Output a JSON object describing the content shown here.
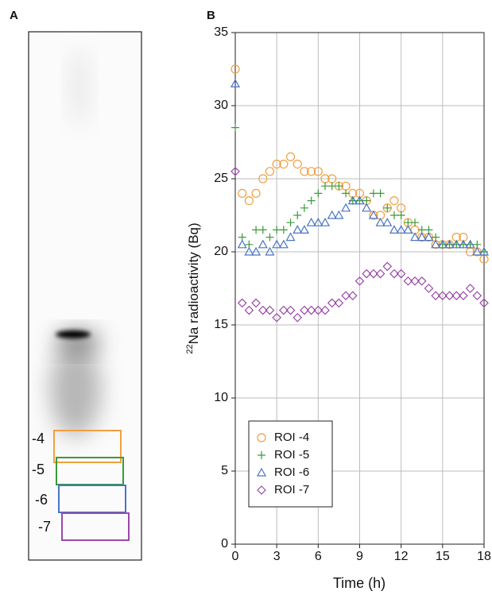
{
  "panels": [
    "A",
    "B"
  ],
  "image_labels": [
    "-4",
    "-5",
    "-6",
    "-7"
  ],
  "chart_data": {
    "type": "scatter",
    "xlabel": "Time (h)",
    "ylabel_sup": "22",
    "ylabel": "Na radioactivity (Bq)",
    "x": [
      0,
      0.5,
      1,
      1.5,
      2,
      2.5,
      3,
      3.5,
      4,
      4.5,
      5,
      5.5,
      6,
      6.5,
      7,
      7.5,
      8,
      8.5,
      9,
      9.5,
      10,
      10.5,
      11,
      11.5,
      12,
      12.5,
      13,
      13.5,
      14,
      14.5,
      15,
      15.5,
      16,
      16.5,
      17,
      17.5,
      18
    ],
    "series": [
      {
        "name": "ROI -4",
        "color": "#f0a040",
        "marker": "circle",
        "values": [
          32.5,
          24,
          23.5,
          24,
          25,
          25.5,
          26,
          26,
          26.5,
          26,
          25.5,
          25.5,
          25.5,
          25,
          25,
          24.5,
          24.5,
          24,
          24,
          23.5,
          22.5,
          22.5,
          23,
          23.5,
          23,
          22,
          21.5,
          21,
          21,
          20.5,
          20.5,
          20.5,
          21,
          21,
          20,
          20,
          19.5
        ]
      },
      {
        "name": "ROI -5",
        "color": "#3a9a3a",
        "marker": "plus",
        "values": [
          28.5,
          21,
          20.5,
          21.5,
          21.5,
          21,
          21.5,
          21.5,
          22,
          22.5,
          23,
          23.5,
          24,
          24.5,
          24.5,
          24.5,
          24,
          23.5,
          23.5,
          23.5,
          24,
          24,
          23,
          22.5,
          22.5,
          22,
          22,
          21.5,
          21.5,
          21,
          20.5,
          20.5,
          20.5,
          20.5,
          20.5,
          20.5,
          20
        ]
      },
      {
        "name": "ROI -6",
        "color": "#4a74c4",
        "marker": "triangle",
        "values": [
          31.5,
          20.5,
          20,
          20,
          20.5,
          20,
          20.5,
          20.5,
          21,
          21.5,
          21.5,
          22,
          22,
          22,
          22.5,
          22.5,
          23,
          23.5,
          23.5,
          23,
          22.5,
          22,
          22,
          21.5,
          21.5,
          21.5,
          21,
          21,
          21,
          20.5,
          20.5,
          20.5,
          20.5,
          20.5,
          20.5,
          20,
          20
        ]
      },
      {
        "name": "ROI -7",
        "color": "#9a4aa8",
        "marker": "diamond",
        "values": [
          25.5,
          16.5,
          16,
          16.5,
          16,
          16,
          15.5,
          16,
          16,
          15.5,
          16,
          16,
          16,
          16,
          16.5,
          16.5,
          17,
          17,
          18,
          18.5,
          18.5,
          18.5,
          19,
          18.5,
          18.5,
          18,
          18,
          18,
          17.5,
          17,
          17,
          17,
          17,
          17,
          17.5,
          17,
          16.5
        ]
      }
    ],
    "xlim": [
      0,
      18
    ],
    "xticks": [
      0,
      3,
      6,
      9,
      12,
      15,
      18
    ],
    "ylim": [
      0,
      35
    ],
    "yticks": [
      0,
      5,
      10,
      15,
      20,
      25,
      30,
      35
    ],
    "grid": true,
    "legend": "lower left"
  }
}
